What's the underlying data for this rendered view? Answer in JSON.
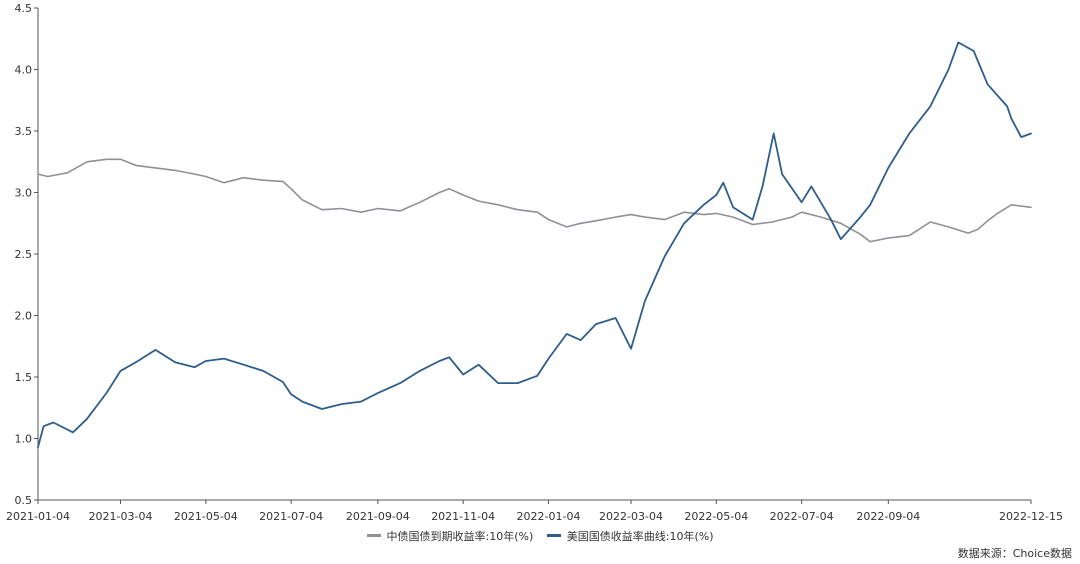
{
  "chart_data": {
    "type": "line",
    "title": "",
    "xlabel": "",
    "ylabel": "",
    "ylim": [
      0.5,
      4.5
    ],
    "yticks": [
      "0.5",
      "1.0",
      "1.5",
      "2.0",
      "2.5",
      "3.0",
      "3.5",
      "4.0",
      "4.5"
    ],
    "xlim": [
      "2021-01-04",
      "2022-12-15"
    ],
    "xticks": [
      "2021-01-04",
      "2021-03-04",
      "2021-05-04",
      "2021-07-04",
      "2021-09-04",
      "2021-11-04",
      "2022-01-04",
      "2022-03-04",
      "2022-05-04",
      "2022-07-04",
      "2022-09-04",
      "2022-12-15"
    ],
    "grid": false,
    "legend_position": "bottom",
    "series": [
      {
        "name": "中债国债到期收益率:10年(%)",
        "color": "#8e9196",
        "x": [
          "2021-01-04",
          "2021-01-11",
          "2021-01-25",
          "2021-02-08",
          "2021-02-22",
          "2021-03-04",
          "2021-03-15",
          "2021-03-29",
          "2021-04-12",
          "2021-04-26",
          "2021-05-04",
          "2021-05-17",
          "2021-05-31",
          "2021-06-14",
          "2021-06-28",
          "2021-07-04",
          "2021-07-12",
          "2021-07-26",
          "2021-08-09",
          "2021-08-23",
          "2021-09-04",
          "2021-09-20",
          "2021-10-04",
          "2021-10-18",
          "2021-10-25",
          "2021-11-04",
          "2021-11-15",
          "2021-11-29",
          "2021-12-13",
          "2021-12-27",
          "2022-01-04",
          "2022-01-17",
          "2022-01-27",
          "2022-02-07",
          "2022-02-21",
          "2022-03-04",
          "2022-03-14",
          "2022-03-28",
          "2022-04-11",
          "2022-04-25",
          "2022-05-04",
          "2022-05-16",
          "2022-05-30",
          "2022-06-13",
          "2022-06-27",
          "2022-07-04",
          "2022-07-18",
          "2022-08-01",
          "2022-08-15",
          "2022-08-22",
          "2022-09-04",
          "2022-09-19",
          "2022-10-04",
          "2022-10-17",
          "2022-10-31",
          "2022-11-07",
          "2022-11-14",
          "2022-11-21",
          "2022-12-01",
          "2022-12-15"
        ],
        "values": [
          3.15,
          3.13,
          3.16,
          3.25,
          3.27,
          3.27,
          3.22,
          3.2,
          3.18,
          3.15,
          3.13,
          3.08,
          3.12,
          3.1,
          3.09,
          3.03,
          2.94,
          2.86,
          2.87,
          2.84,
          2.87,
          2.85,
          2.92,
          3.0,
          3.03,
          2.98,
          2.93,
          2.9,
          2.86,
          2.84,
          2.78,
          2.72,
          2.75,
          2.77,
          2.8,
          2.82,
          2.8,
          2.78,
          2.84,
          2.82,
          2.83,
          2.8,
          2.74,
          2.76,
          2.8,
          2.84,
          2.8,
          2.75,
          2.66,
          2.6,
          2.63,
          2.65,
          2.76,
          2.72,
          2.67,
          2.7,
          2.77,
          2.83,
          2.9,
          2.88
        ]
      },
      {
        "name": "美国国债收益率曲线:10年(%)",
        "color": "#2e5d8c",
        "x": [
          "2021-01-04",
          "2021-01-08",
          "2021-01-15",
          "2021-01-29",
          "2021-02-08",
          "2021-02-22",
          "2021-03-04",
          "2021-03-15",
          "2021-03-29",
          "2021-04-12",
          "2021-04-26",
          "2021-05-04",
          "2021-05-17",
          "2021-05-31",
          "2021-06-14",
          "2021-06-28",
          "2021-07-04",
          "2021-07-12",
          "2021-07-26",
          "2021-08-09",
          "2021-08-23",
          "2021-09-04",
          "2021-09-20",
          "2021-10-04",
          "2021-10-18",
          "2021-10-25",
          "2021-11-04",
          "2021-11-15",
          "2021-11-29",
          "2021-12-13",
          "2021-12-27",
          "2022-01-04",
          "2022-01-17",
          "2022-01-27",
          "2022-02-07",
          "2022-02-21",
          "2022-03-04",
          "2022-03-14",
          "2022-03-28",
          "2022-04-11",
          "2022-04-25",
          "2022-05-04",
          "2022-05-09",
          "2022-05-16",
          "2022-05-30",
          "2022-06-06",
          "2022-06-14",
          "2022-06-20",
          "2022-07-04",
          "2022-07-11",
          "2022-07-25",
          "2022-08-01",
          "2022-08-15",
          "2022-08-22",
          "2022-09-04",
          "2022-09-19",
          "2022-10-04",
          "2022-10-17",
          "2022-10-24",
          "2022-11-04",
          "2022-11-14",
          "2022-11-28",
          "2022-12-01",
          "2022-12-08",
          "2022-12-15"
        ],
        "values": [
          0.93,
          1.1,
          1.13,
          1.05,
          1.16,
          1.37,
          1.55,
          1.62,
          1.72,
          1.62,
          1.58,
          1.63,
          1.65,
          1.6,
          1.55,
          1.46,
          1.36,
          1.3,
          1.24,
          1.28,
          1.3,
          1.37,
          1.45,
          1.55,
          1.63,
          1.66,
          1.52,
          1.6,
          1.45,
          1.45,
          1.51,
          1.65,
          1.85,
          1.8,
          1.93,
          1.98,
          1.73,
          2.12,
          2.48,
          2.75,
          2.9,
          2.98,
          3.08,
          2.88,
          2.78,
          3.05,
          3.48,
          3.15,
          2.92,
          3.05,
          2.78,
          2.62,
          2.8,
          2.9,
          3.2,
          3.48,
          3.7,
          4.0,
          4.22,
          4.15,
          3.88,
          3.7,
          3.6,
          3.45,
          3.48
        ]
      }
    ]
  },
  "source": "数据来源：Choice数据"
}
